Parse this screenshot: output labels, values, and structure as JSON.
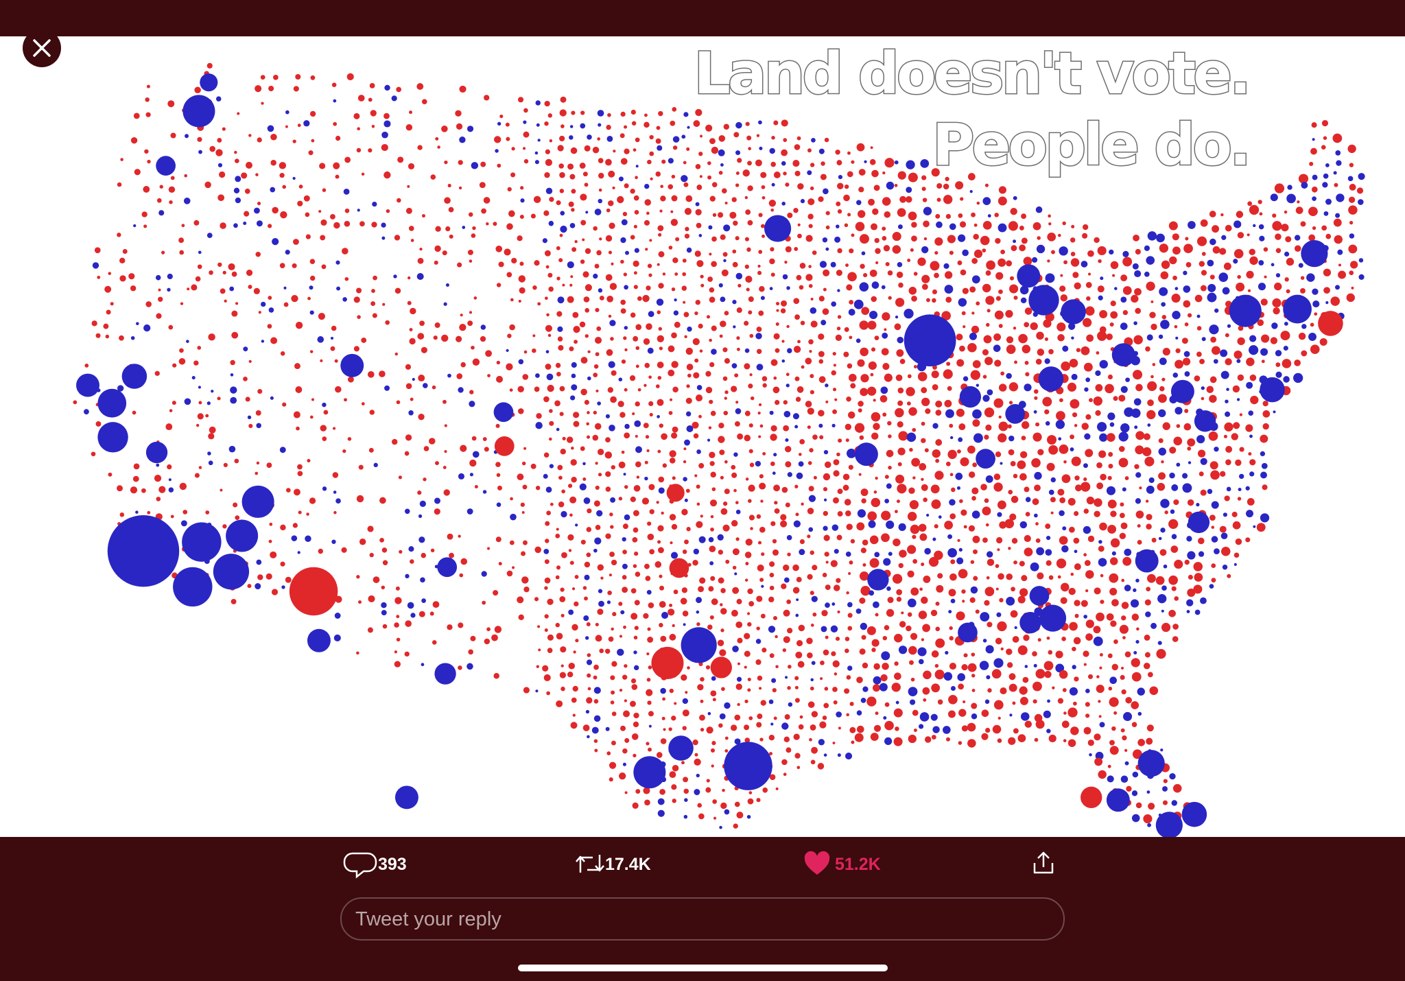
{
  "media": {
    "caption_line1": "Land doesn't vote.",
    "caption_line2": "People do."
  },
  "actions": {
    "replies": "393",
    "retweets": "17.4K",
    "likes": "51.2K"
  },
  "reply_box": {
    "placeholder": "Tweet your reply"
  }
}
